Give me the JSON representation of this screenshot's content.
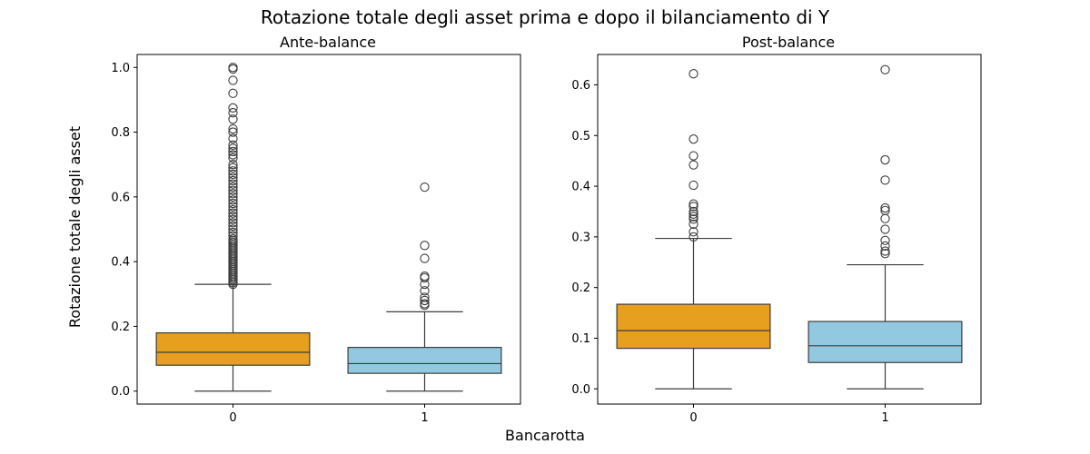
{
  "figure": {
    "title": "Rotazione totale degli asset prima e dopo il bilanciamento di Y",
    "xlabel": "Bancarotta",
    "ylabel": "Rotazione totale degli asset"
  },
  "colors": {
    "category_0": "#E69F1E",
    "category_1": "#92C9E0",
    "line": "#3d3d3d",
    "axis": "#000000"
  },
  "chart_data": [
    {
      "type": "box",
      "title": "Ante-balance",
      "xlabel": "",
      "ylabel": "",
      "categories": [
        "0",
        "1"
      ],
      "ylim": [
        -0.04,
        1.04
      ],
      "yticks": [
        0.0,
        0.2,
        0.4,
        0.6,
        0.8,
        1.0
      ],
      "ytick_labels": [
        "0.0",
        "0.2",
        "0.4",
        "0.6",
        "0.8",
        "1.0"
      ],
      "grid": false,
      "boxes": [
        {
          "category": "0",
          "whisker_low": 0.0,
          "q1": 0.08,
          "median": 0.12,
          "q3": 0.18,
          "whisker_high": 0.33,
          "outliers": [
            0.33,
            0.335,
            0.34,
            0.345,
            0.35,
            0.355,
            0.36,
            0.365,
            0.37,
            0.375,
            0.38,
            0.385,
            0.39,
            0.395,
            0.4,
            0.405,
            0.41,
            0.415,
            0.42,
            0.425,
            0.43,
            0.435,
            0.44,
            0.445,
            0.45,
            0.455,
            0.46,
            0.465,
            0.47,
            0.48,
            0.49,
            0.5,
            0.51,
            0.52,
            0.53,
            0.54,
            0.55,
            0.56,
            0.57,
            0.58,
            0.59,
            0.6,
            0.61,
            0.62,
            0.63,
            0.64,
            0.65,
            0.66,
            0.67,
            0.68,
            0.69,
            0.7,
            0.72,
            0.73,
            0.74,
            0.75,
            0.76,
            0.78,
            0.8,
            0.81,
            0.84,
            0.86,
            0.875,
            0.92,
            0.96,
            0.995,
            1.0
          ]
        },
        {
          "category": "1",
          "whisker_low": 0.0,
          "q1": 0.055,
          "median": 0.085,
          "q3": 0.135,
          "whisker_high": 0.245,
          "outliers": [
            0.265,
            0.27,
            0.28,
            0.29,
            0.31,
            0.33,
            0.35,
            0.355,
            0.41,
            0.45,
            0.63
          ]
        }
      ]
    },
    {
      "type": "box",
      "title": "Post-balance",
      "xlabel": "",
      "ylabel": "",
      "categories": [
        "0",
        "1"
      ],
      "ylim": [
        -0.03,
        0.66
      ],
      "yticks": [
        0.0,
        0.1,
        0.2,
        0.3,
        0.4,
        0.5,
        0.6
      ],
      "ytick_labels": [
        "0.0",
        "0.1",
        "0.2",
        "0.3",
        "0.4",
        "0.5",
        "0.6"
      ],
      "grid": false,
      "boxes": [
        {
          "category": "0",
          "whisker_low": 0.0,
          "q1": 0.08,
          "median": 0.115,
          "q3": 0.167,
          "whisker_high": 0.297,
          "outliers": [
            0.3,
            0.31,
            0.325,
            0.335,
            0.34,
            0.345,
            0.35,
            0.36,
            0.365,
            0.402,
            0.442,
            0.46,
            0.493,
            0.622
          ]
        },
        {
          "category": "1",
          "whisker_low": 0.0,
          "q1": 0.052,
          "median": 0.085,
          "q3": 0.133,
          "whisker_high": 0.245,
          "outliers": [
            0.267,
            0.272,
            0.282,
            0.293,
            0.315,
            0.336,
            0.352,
            0.357,
            0.412,
            0.452,
            0.63
          ]
        }
      ]
    }
  ]
}
